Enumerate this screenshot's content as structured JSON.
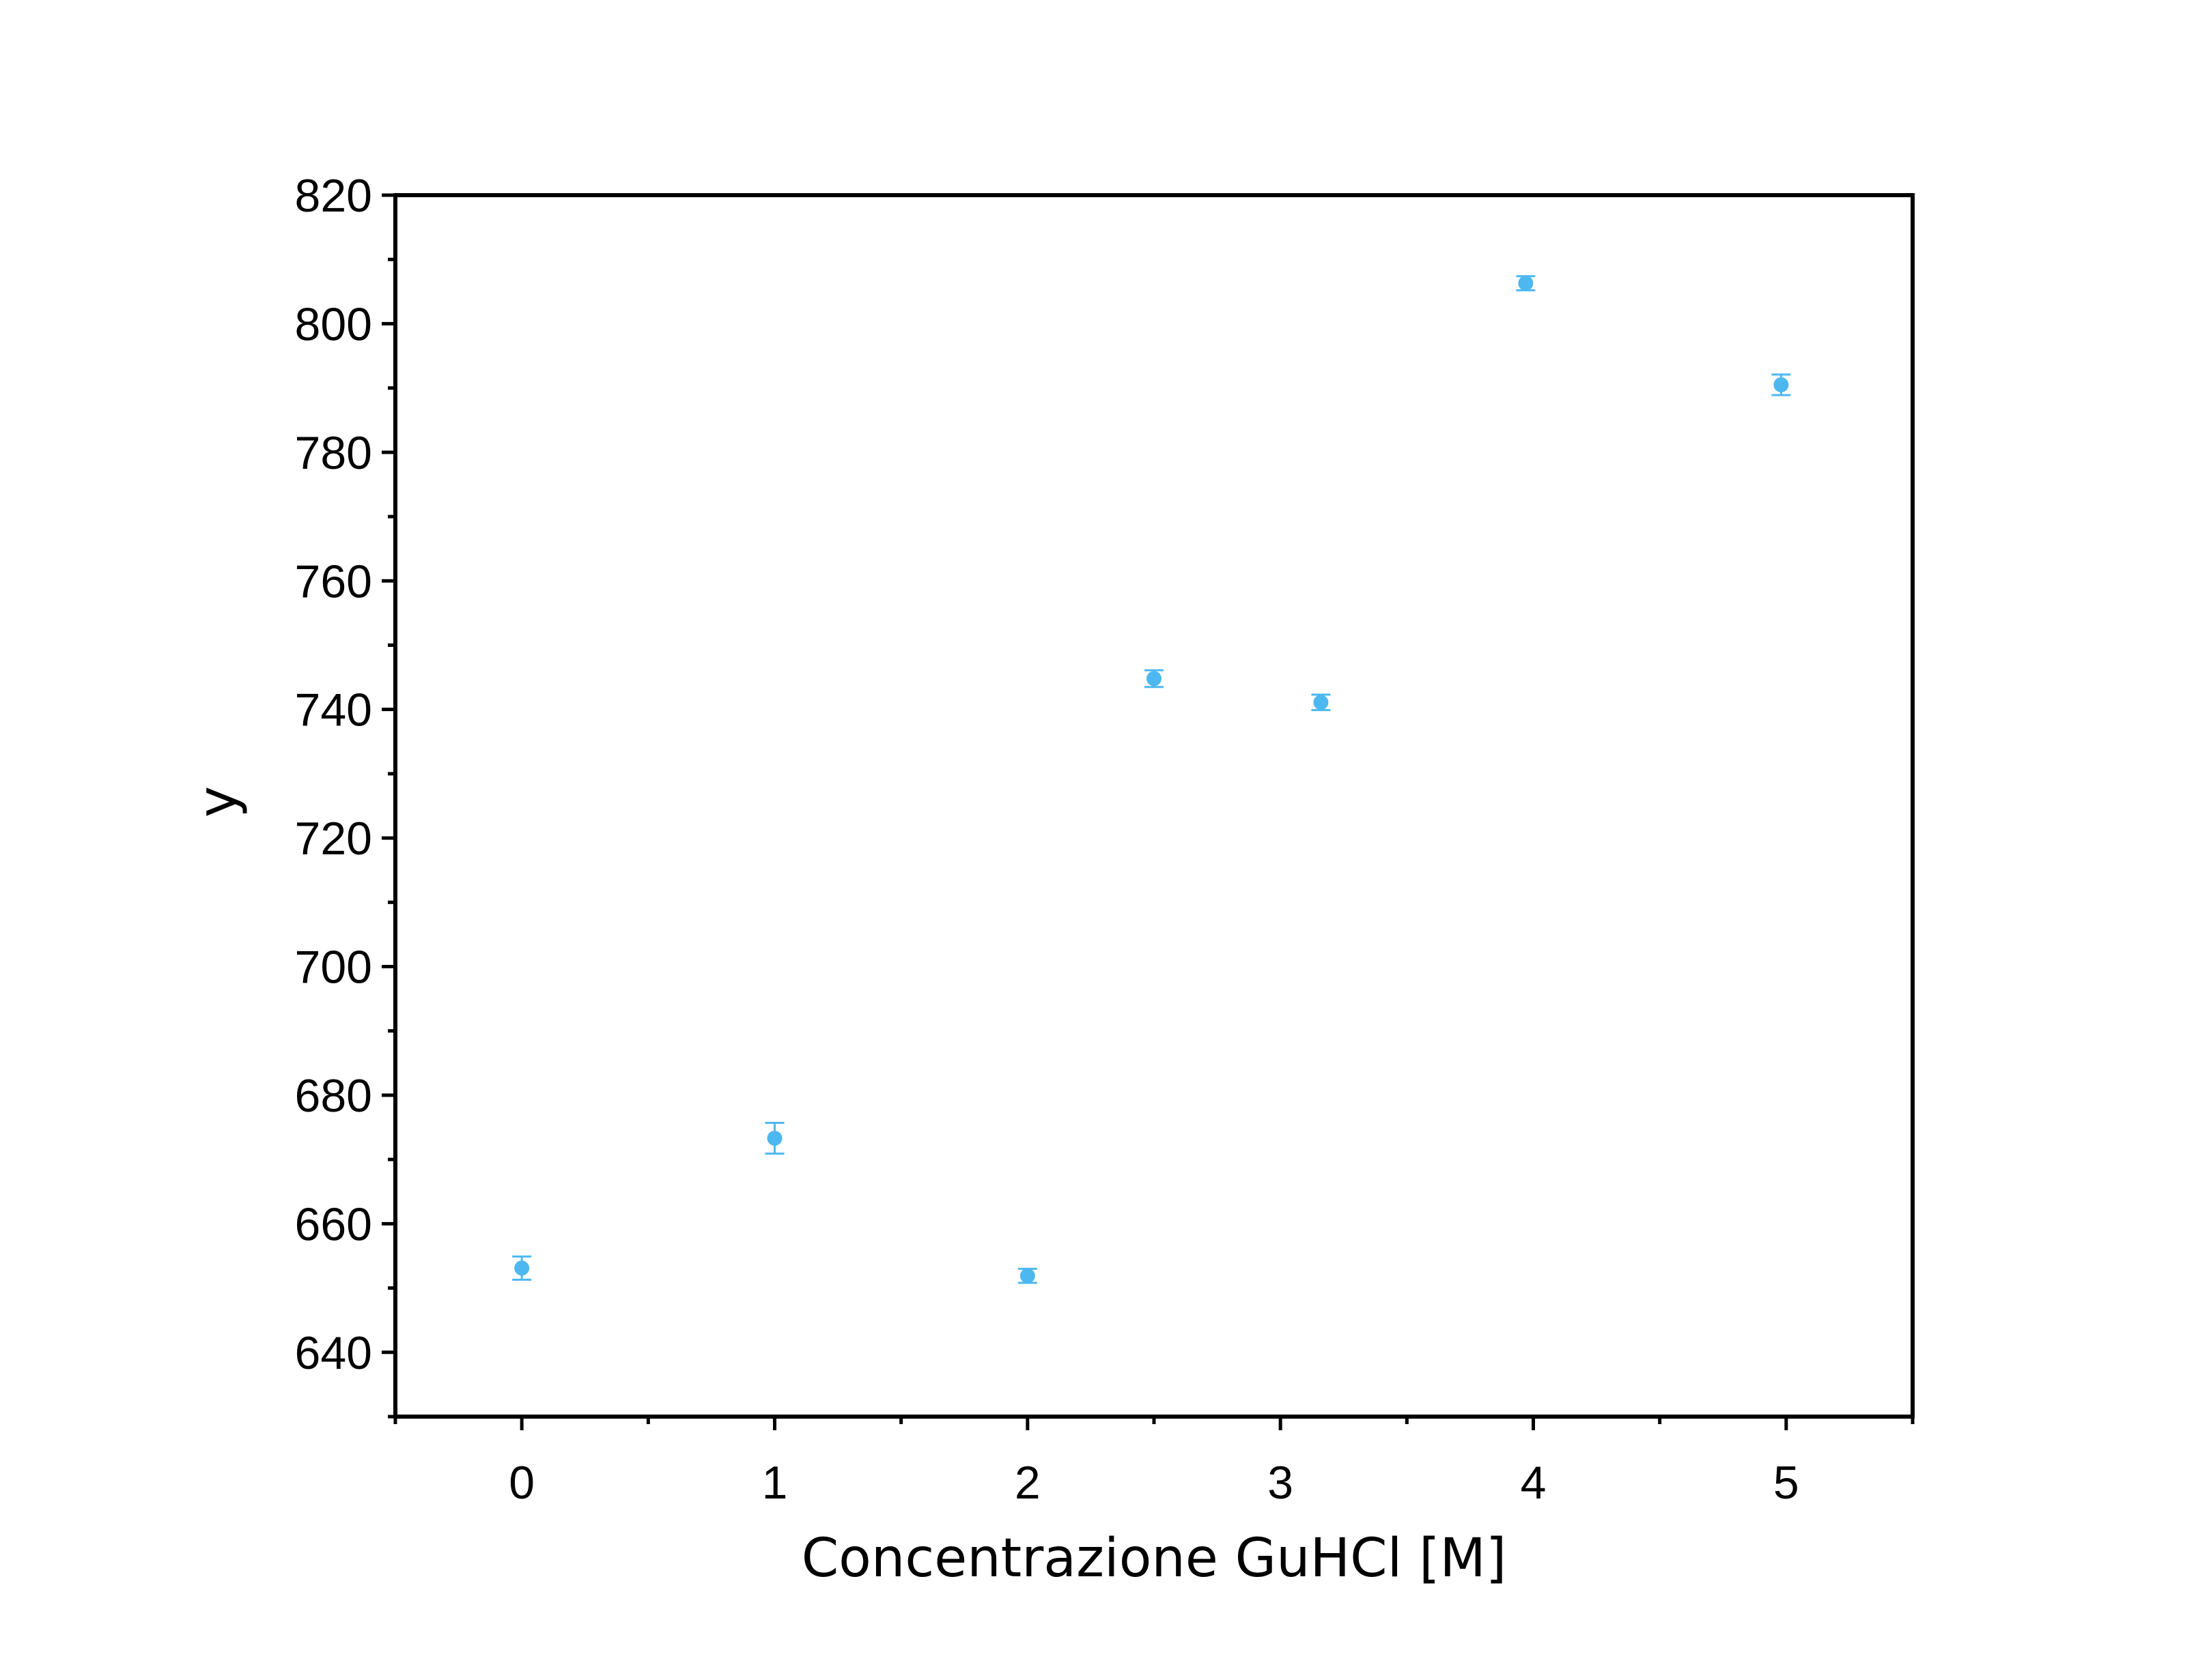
{
  "chart_data": {
    "type": "scatter",
    "xlabel": "Concentrazione GuHCl [M]",
    "ylabel": "y",
    "xlim": [
      -0.5,
      5.5
    ],
    "ylim": [
      630,
      820
    ],
    "x_ticks": [
      "0",
      "1",
      "2",
      "3",
      "4",
      "5"
    ],
    "y_ticks": [
      "640",
      "660",
      "680",
      "700",
      "720",
      "740",
      "760",
      "780",
      "800",
      "820"
    ],
    "grid": false,
    "legend": "none",
    "series": [
      {
        "points": [
          {
            "x": 0.0,
            "y": 653.1,
            "err": 1.8
          },
          {
            "x": 1.0,
            "y": 673.3,
            "err": 2.4
          },
          {
            "x": 2.0,
            "y": 651.9,
            "err": 1.1
          },
          {
            "x": 2.5,
            "y": 744.8,
            "err": 1.3
          },
          {
            "x": 3.16,
            "y": 741.1,
            "err": 1.2
          },
          {
            "x": 3.97,
            "y": 806.3,
            "err": 1.1
          },
          {
            "x": 4.98,
            "y": 790.5,
            "err": 1.6
          }
        ]
      }
    ],
    "colors": {
      "marker": "#4db8f0",
      "axis": "#000000"
    }
  }
}
